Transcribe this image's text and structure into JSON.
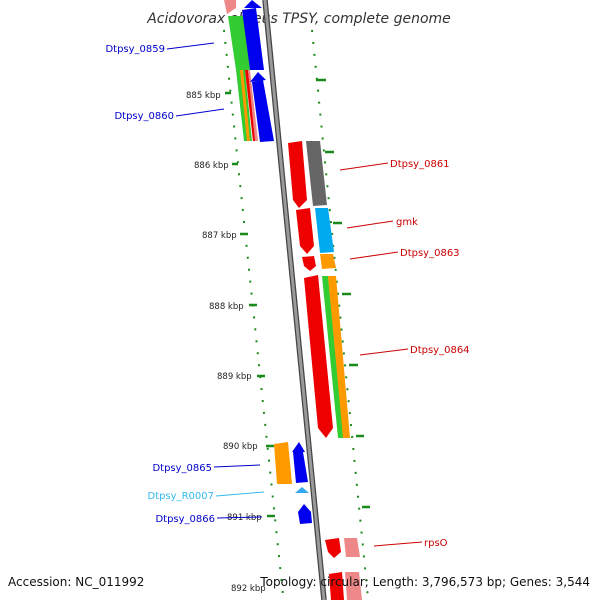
{
  "title": "Acidovorax ebreus TPSY, complete genome",
  "accession": "Accession: NC_011992",
  "topology": "Topology: circular; Length: 3,796,573 bp; Genes: 3,544",
  "kbp_labels": [
    "885 kbp",
    "886 kbp",
    "887 kbp",
    "888 kbp",
    "889 kbp",
    "890 kbp",
    "891 kbp",
    "892 kbp"
  ],
  "genes": [
    {
      "label": "Dtpsy_0859",
      "color": "#0000cc"
    },
    {
      "label": "Dtpsy_0860",
      "color": "#0000cc"
    },
    {
      "label": "Dtpsy_0861",
      "color": "#cc0000"
    },
    {
      "label": "gmk",
      "color": "#cc0000"
    },
    {
      "label": "Dtpsy_0863",
      "color": "#cc0000"
    },
    {
      "label": "Dtpsy_0864",
      "color": "#cc0000"
    },
    {
      "label": "Dtpsy_0865",
      "color": "#0000cc"
    },
    {
      "label": "Dtpsy_R0007",
      "color": "#33bbee"
    },
    {
      "label": "Dtpsy_0866",
      "color": "#0000cc"
    },
    {
      "label": "rpsO",
      "color": "#cc0000"
    }
  ],
  "colors": {
    "backbone": "#777777",
    "tick": "#1a8a1a",
    "red": "#ee0000",
    "blue": "#0000ee",
    "green": "#33cc33",
    "orange": "#ff9900",
    "gray": "#666666",
    "cyan": "#00aaee",
    "pink": "#ee8888"
  }
}
